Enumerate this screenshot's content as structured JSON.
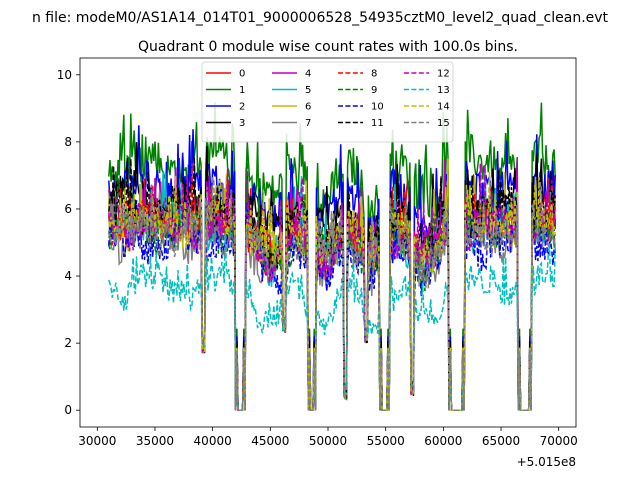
{
  "chart_data": {
    "type": "line",
    "suptitle": "n file: modeM0/AS1A14_014T01_9000006528_54935cztM0_level2_quad_clean.evt",
    "title": "Quadrant 0 module wise count rates with 100.0s bins.",
    "xlabel": "",
    "ylabel": "",
    "x_offset_label": "+5.015e8",
    "xlim": [
      28500,
      71500
    ],
    "ylim": [
      -0.5,
      10.5
    ],
    "x_ticks": [
      30000,
      35000,
      40000,
      45000,
      50000,
      55000,
      60000,
      65000,
      70000
    ],
    "x_tick_labels": [
      "30000",
      "35000",
      "40000",
      "45000",
      "50000",
      "55000",
      "60000",
      "65000",
      "70000"
    ],
    "y_ticks": [
      0,
      2,
      4,
      6,
      8,
      10
    ],
    "y_tick_labels": [
      "0",
      "2",
      "4",
      "6",
      "8",
      "10"
    ],
    "x_range": [
      31000,
      69700
    ],
    "gaps": [
      [
        42000,
        42800
      ],
      [
        48300,
        48900
      ],
      [
        54500,
        55300
      ],
      [
        60500,
        61800
      ],
      [
        66500,
        67600
      ]
    ],
    "dips": [
      [
        39200,
        1.7
      ],
      [
        51500,
        0.3
      ],
      [
        57300,
        0.4
      ],
      [
        46200,
        2.3
      ],
      [
        53300,
        2.0
      ]
    ],
    "legend": {
      "placement": "top-center",
      "columns": 4
    },
    "series": [
      {
        "name": "0",
        "color": "#ff0000",
        "dash": "solid",
        "level": 5.6,
        "noise": 0.5
      },
      {
        "name": "1",
        "color": "#008000",
        "dash": "solid",
        "level": 7.3,
        "noise": 0.6
      },
      {
        "name": "2",
        "color": "#0000ff",
        "dash": "solid",
        "level": 6.6,
        "noise": 0.55
      },
      {
        "name": "3",
        "color": "#000000",
        "dash": "solid",
        "level": 6.2,
        "noise": 0.5
      },
      {
        "name": "4",
        "color": "#bf00bf",
        "dash": "solid",
        "level": 5.8,
        "noise": 0.5
      },
      {
        "name": "5",
        "color": "#00bfbf",
        "dash": "solid",
        "level": 5.5,
        "noise": 0.5
      },
      {
        "name": "6",
        "color": "#bfbf00",
        "dash": "solid",
        "level": 5.5,
        "noise": 0.5
      },
      {
        "name": "7",
        "color": "#808080",
        "dash": "solid",
        "level": 5.2,
        "noise": 0.5
      },
      {
        "name": "8",
        "color": "#ff0000",
        "dash": "dashed",
        "level": 5.6,
        "noise": 0.5
      },
      {
        "name": "9",
        "color": "#008000",
        "dash": "dashed",
        "level": 5.4,
        "noise": 0.5
      },
      {
        "name": "10",
        "color": "#0000ff",
        "dash": "dashed",
        "level": 5.0,
        "noise": 0.5
      },
      {
        "name": "11",
        "color": "#000000",
        "dash": "dashed",
        "level": 5.9,
        "noise": 0.5
      },
      {
        "name": "12",
        "color": "#bf00bf",
        "dash": "dashed",
        "level": 5.5,
        "noise": 0.5
      },
      {
        "name": "13",
        "color": "#00bfbf",
        "dash": "dashed",
        "level": 3.7,
        "noise": 0.4
      },
      {
        "name": "14",
        "color": "#bfbf00",
        "dash": "dashed",
        "level": 5.6,
        "noise": 0.5
      },
      {
        "name": "15",
        "color": "#808080",
        "dash": "dashed",
        "level": 5.3,
        "noise": 0.5
      }
    ]
  }
}
